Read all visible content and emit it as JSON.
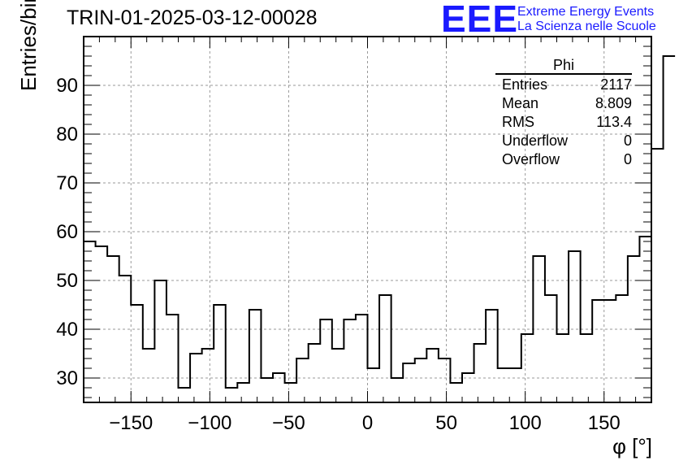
{
  "title": "TRIN-01-2025-03-12-00028",
  "logo": {
    "text": "EEE",
    "line1": "Extreme Energy Events",
    "line2": "La Scienza nelle Scuole",
    "color": "#1a1aff"
  },
  "stats": {
    "title": "Phi",
    "rows": [
      {
        "label": "Entries",
        "value": "2117"
      },
      {
        "label": "Mean",
        "value": "8.809"
      },
      {
        "label": "RMS",
        "value": "113.4"
      },
      {
        "label": "Underflow",
        "value": "0"
      },
      {
        "label": "Overflow",
        "value": "0"
      }
    ]
  },
  "chart_data": {
    "type": "histogram",
    "title": "TRIN-01-2025-03-12-00028",
    "xlabel": "φ [°]",
    "ylabel": "Entries/bin",
    "xlim": [
      -180,
      180
    ],
    "ylim": [
      25,
      100
    ],
    "xticks": [
      -150,
      -100,
      -50,
      0,
      50,
      100,
      150
    ],
    "xtick_labels": [
      "−150",
      "−100",
      "−50",
      "0",
      "50",
      "100",
      "150"
    ],
    "yticks": [
      30,
      40,
      50,
      60,
      70,
      80,
      90
    ],
    "ytick_labels": [
      "30",
      "40",
      "50",
      "60",
      "70",
      "80",
      "90"
    ],
    "grid": true,
    "bin_width": 7.5,
    "bin_start": -180,
    "values": [
      58,
      57,
      55,
      51,
      45,
      36,
      50,
      43,
      28,
      35,
      36,
      45,
      28,
      29,
      44,
      30,
      31,
      29,
      34,
      37,
      42,
      36,
      42,
      43,
      32,
      47,
      30,
      33,
      34,
      36,
      34,
      29,
      31,
      37,
      44,
      32,
      32,
      39,
      55,
      47,
      39,
      56,
      39,
      46,
      46,
      47,
      55,
      59,
      77,
      96
    ]
  }
}
